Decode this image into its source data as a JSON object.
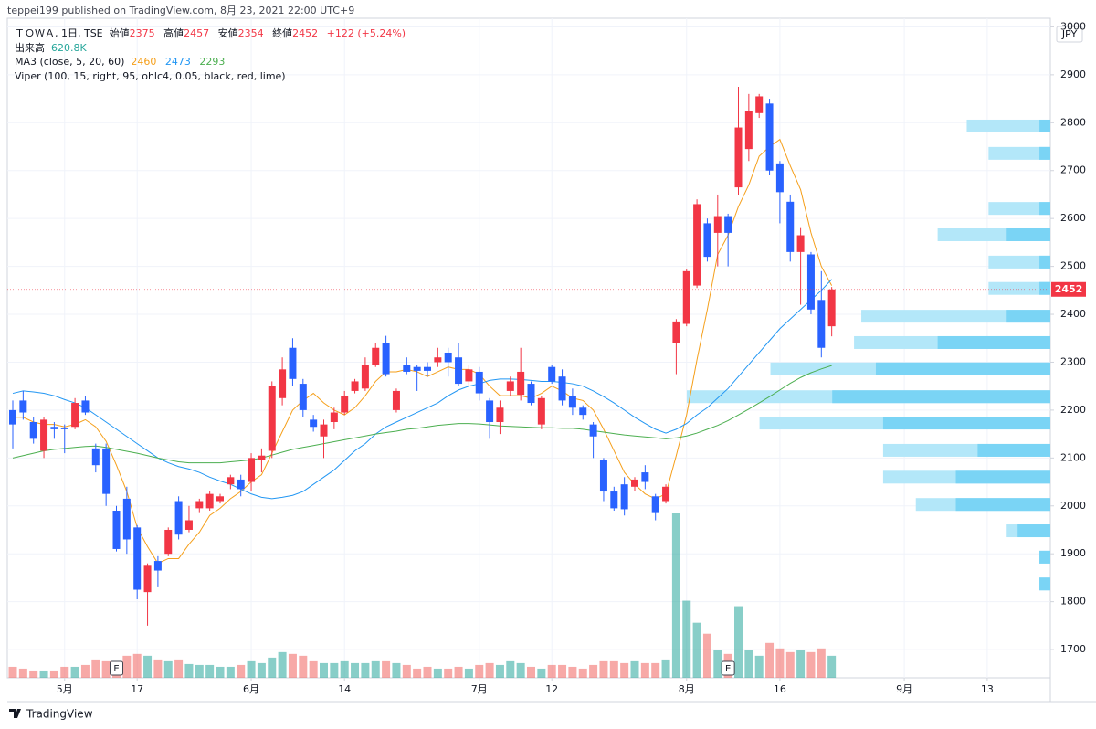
{
  "chart_data": {
    "type": "candlestick",
    "header": "teppei199 published on TradingView.com, 8月 23, 2021 22:00 UTC+9",
    "symbol": "ＴＯＷＡ, 1日, TSE",
    "legend": {
      "open_label": "始値",
      "high_label": "高値",
      "low_label": "安値",
      "close_label": "終値",
      "change": "+122 (+5.24%)",
      "volume_label": "出来高",
      "ma_label": "MA3 (close, 5, 20, 60)",
      "viper_label": "Viper (100, 15, right, 95, ohlc4, 0.05, black, red, lime)"
    },
    "currency": "JPY",
    "footer": "TradingView",
    "x": [
      "2021-04-23",
      "2021-04-26",
      "2021-04-27",
      "2021-04-28",
      "2021-04-30",
      "2021-05-06",
      "2021-05-07",
      "2021-05-10",
      "2021-05-11",
      "2021-05-12",
      "2021-05-13",
      "2021-05-14",
      "2021-05-17",
      "2021-05-18",
      "2021-05-19",
      "2021-05-20",
      "2021-05-21",
      "2021-05-24",
      "2021-05-25",
      "2021-05-26",
      "2021-05-27",
      "2021-05-28",
      "2021-05-31",
      "2021-06-01",
      "2021-06-02",
      "2021-06-03",
      "2021-06-04",
      "2021-06-07",
      "2021-06-08",
      "2021-06-09",
      "2021-06-10",
      "2021-06-11",
      "2021-06-14",
      "2021-06-15",
      "2021-06-16",
      "2021-06-17",
      "2021-06-18",
      "2021-06-21",
      "2021-06-22",
      "2021-06-23",
      "2021-06-24",
      "2021-06-25",
      "2021-06-28",
      "2021-06-29",
      "2021-06-30",
      "2021-07-01",
      "2021-07-02",
      "2021-07-05",
      "2021-07-06",
      "2021-07-07",
      "2021-07-08",
      "2021-07-09",
      "2021-07-12",
      "2021-07-13",
      "2021-07-14",
      "2021-07-15",
      "2021-07-16",
      "2021-07-19",
      "2021-07-20",
      "2021-07-21",
      "2021-07-26",
      "2021-07-27",
      "2021-07-28",
      "2021-07-29",
      "2021-07-30",
      "2021-08-02",
      "2021-08-03",
      "2021-08-04",
      "2021-08-05",
      "2021-08-06",
      "2021-08-10",
      "2021-08-11",
      "2021-08-12",
      "2021-08-13",
      "2021-08-16",
      "2021-08-17",
      "2021-08-18",
      "2021-08-19",
      "2021-08-20",
      "2021-08-23"
    ],
    "candles": {
      "up_color": "#f23645",
      "down_color": "#2962ff",
      "open": [
        2200,
        2220,
        2175,
        2115,
        2165,
        2163,
        2165,
        2220,
        2120,
        2120,
        1990,
        2015,
        1955,
        1820,
        1885,
        1900,
        2010,
        1950,
        1995,
        1995,
        2010,
        2045,
        2055,
        2050,
        2095,
        2115,
        2225,
        2330,
        2255,
        2180,
        2145,
        2175,
        2195,
        2240,
        2245,
        2295,
        2340,
        2200,
        2295,
        2290,
        2290,
        2300,
        2320,
        2310,
        2260,
        2280,
        2220,
        2175,
        2240,
        2232,
        2255,
        2170,
        2290,
        2270,
        2230,
        2205,
        2170,
        2095,
        2030,
        2045,
        2040,
        2070,
        2020,
        2010,
        2340,
        2380,
        2460,
        2590,
        2570,
        2605,
        2665,
        2745,
        2820,
        2840,
        2715,
        2635,
        2530,
        2525,
        2430,
        2375
      ],
      "high": [
        2220,
        2240,
        2185,
        2185,
        2175,
        2170,
        2225,
        2230,
        2130,
        2130,
        2000,
        2040,
        1960,
        1880,
        1895,
        1955,
        2020,
        2000,
        2015,
        2030,
        2025,
        2065,
        2065,
        2110,
        2120,
        2260,
        2310,
        2350,
        2265,
        2190,
        2180,
        2205,
        2240,
        2265,
        2310,
        2340,
        2355,
        2245,
        2310,
        2295,
        2300,
        2330,
        2330,
        2340,
        2295,
        2290,
        2225,
        2220,
        2270,
        2330,
        2260,
        2230,
        2295,
        2285,
        2245,
        2210,
        2175,
        2100,
        2040,
        2060,
        2060,
        2085,
        2025,
        2045,
        2390,
        2495,
        2640,
        2600,
        2650,
        2610,
        2875,
        2860,
        2860,
        2850,
        2720,
        2650,
        2580,
        2530,
        2490,
        2457
      ],
      "low": [
        2120,
        2180,
        2130,
        2100,
        2140,
        2110,
        2160,
        2190,
        2070,
        2000,
        1905,
        1900,
        1805,
        1750,
        1830,
        1895,
        1930,
        1945,
        1985,
        1990,
        2005,
        2035,
        2020,
        2030,
        2070,
        2100,
        2210,
        2250,
        2185,
        2155,
        2100,
        2160,
        2190,
        2235,
        2240,
        2290,
        2270,
        2195,
        2275,
        2240,
        2270,
        2290,
        2270,
        2250,
        2250,
        2220,
        2140,
        2150,
        2230,
        2220,
        2210,
        2160,
        2255,
        2210,
        2190,
        2180,
        2100,
        2010,
        1990,
        1980,
        2030,
        2035,
        1970,
        2005,
        2275,
        2375,
        2455,
        2510,
        2500,
        2500,
        2650,
        2720,
        2810,
        2690,
        2590,
        2510,
        2420,
        2400,
        2310,
        2354
      ],
      "close": [
        2170,
        2195,
        2140,
        2180,
        2160,
        2160,
        2215,
        2195,
        2085,
        2025,
        1910,
        1930,
        1825,
        1875,
        1865,
        1950,
        1940,
        1970,
        2010,
        2025,
        2020,
        2060,
        2035,
        2100,
        2105,
        2250,
        2285,
        2265,
        2200,
        2165,
        2170,
        2195,
        2230,
        2260,
        2295,
        2330,
        2275,
        2240,
        2280,
        2282,
        2282,
        2310,
        2300,
        2255,
        2285,
        2235,
        2175,
        2205,
        2260,
        2280,
        2215,
        2225,
        2260,
        2220,
        2205,
        2190,
        2145,
        2030,
        1995,
        1993,
        2055,
        2050,
        1985,
        2040,
        2385,
        2490,
        2630,
        2520,
        2605,
        2570,
        2790,
        2825,
        2855,
        2700,
        2655,
        2530,
        2565,
        2410,
        2330,
        2452
      ]
    },
    "volume": {
      "up_color": "rgba(38,166,154,0.55)",
      "down_color": "rgba(239,83,80,0.5)",
      "values": [
        310000,
        259000,
        207000,
        207000,
        207000,
        310000,
        310000,
        362000,
        517000,
        466000,
        466000,
        621000,
        673000,
        621000,
        517000,
        466000,
        517000,
        388000,
        362000,
        362000,
        310000,
        310000,
        362000,
        466000,
        414000,
        569000,
        724000,
        673000,
        621000,
        466000,
        414000,
        414000,
        466000,
        414000,
        414000,
        466000,
        466000,
        414000,
        362000,
        259000,
        310000,
        259000,
        259000,
        310000,
        259000,
        362000,
        414000,
        362000,
        466000,
        414000,
        310000,
        259000,
        362000,
        362000,
        310000,
        259000,
        362000,
        466000,
        466000,
        414000,
        466000,
        414000,
        414000,
        517000,
        4631000,
        2173000,
        1552000,
        1242000,
        776000,
        673000,
        2018000,
        776000,
        621000,
        983000,
        828000,
        724000,
        776000,
        724000,
        828000,
        620800
      ],
      "value_labels": [
        null,
        null,
        null,
        null,
        null,
        null,
        null,
        null,
        null,
        null,
        null,
        null,
        null,
        null,
        null,
        null,
        null,
        null,
        null,
        null,
        null,
        null,
        null,
        null,
        null,
        null,
        null,
        null,
        null,
        null,
        null,
        null,
        null,
        null,
        null,
        null,
        null,
        null,
        null,
        null,
        null,
        null,
        null,
        null,
        null,
        null,
        null,
        null,
        null,
        null,
        null,
        null,
        null,
        null,
        null,
        null,
        null,
        null,
        null,
        null,
        null,
        null,
        null,
        null,
        null,
        null,
        null,
        null,
        null,
        null,
        null,
        null,
        null,
        null,
        null,
        null,
        null,
        null,
        null,
        "620.8K"
      ]
    },
    "ma": {
      "lines": [
        {
          "color": "#f59f1a",
          "values": [
            2185,
            2185,
            2175,
            2170,
            2170,
            2165,
            2170,
            2180,
            2165,
            2135,
            2085,
            2030,
            1955,
            1915,
            1880,
            1890,
            1890,
            1920,
            1945,
            1980,
            1995,
            2015,
            2030,
            2050,
            2065,
            2110,
            2155,
            2200,
            2220,
            2235,
            2215,
            2200,
            2190,
            2205,
            2230,
            2260,
            2280,
            2280,
            2285,
            2280,
            2270,
            2280,
            2290,
            2285,
            2285,
            2275,
            2250,
            2230,
            2230,
            2230,
            2225,
            2235,
            2250,
            2240,
            2225,
            2220,
            2200,
            2160,
            2115,
            2070,
            2045,
            2025,
            2015,
            2025,
            2105,
            2190,
            2305,
            2410,
            2525,
            2565,
            2625,
            2670,
            2730,
            2750,
            2765,
            2710,
            2660,
            2570,
            2500,
            2460
          ]
        },
        {
          "color": "#2196f3",
          "values": [
            2235,
            2240,
            2238,
            2235,
            2230,
            2222,
            2215,
            2205,
            2190,
            2175,
            2160,
            2145,
            2130,
            2115,
            2100,
            2090,
            2082,
            2077,
            2070,
            2060,
            2052,
            2045,
            2035,
            2025,
            2018,
            2015,
            2018,
            2022,
            2030,
            2045,
            2060,
            2075,
            2095,
            2115,
            2130,
            2150,
            2165,
            2175,
            2185,
            2195,
            2205,
            2215,
            2230,
            2242,
            2250,
            2255,
            2262,
            2265,
            2265,
            2264,
            2262,
            2260,
            2260,
            2258,
            2255,
            2250,
            2240,
            2228,
            2215,
            2200,
            2185,
            2172,
            2160,
            2152,
            2160,
            2172,
            2190,
            2205,
            2225,
            2245,
            2270,
            2295,
            2320,
            2345,
            2370,
            2390,
            2410,
            2430,
            2450,
            2473
          ]
        },
        {
          "color": "#4caf50",
          "values": [
            2100,
            2105,
            2110,
            2115,
            2118,
            2120,
            2122,
            2124,
            2125,
            2122,
            2118,
            2114,
            2110,
            2105,
            2100,
            2096,
            2092,
            2090,
            2090,
            2090,
            2090,
            2092,
            2094,
            2096,
            2100,
            2106,
            2112,
            2118,
            2122,
            2126,
            2130,
            2134,
            2138,
            2142,
            2146,
            2150,
            2153,
            2156,
            2160,
            2162,
            2165,
            2168,
            2170,
            2172,
            2172,
            2171,
            2169,
            2167,
            2166,
            2165,
            2164,
            2163,
            2163,
            2162,
            2162,
            2160,
            2157,
            2154,
            2151,
            2148,
            2146,
            2144,
            2142,
            2140,
            2142,
            2146,
            2152,
            2160,
            2168,
            2178,
            2190,
            2202,
            2215,
            2228,
            2242,
            2256,
            2268,
            2278,
            2286,
            2293
          ]
        }
      ]
    },
    "volume_profile": {
      "light_color": "#b3e7f9",
      "dark_color": "#7ad4f5",
      "prices": [
        2793,
        2736,
        2621,
        2566,
        2509,
        2454,
        2396,
        2341,
        2286,
        2228,
        2173,
        2116,
        2060,
        2003,
        1948,
        1893,
        1837
      ],
      "total": [
        23,
        17,
        17,
        31,
        17,
        17,
        52,
        54,
        77,
        100,
        80,
        46,
        46,
        37,
        12,
        3,
        3
      ],
      "dark": [
        3,
        3,
        3,
        12,
        3,
        3,
        12,
        31,
        48,
        60,
        46,
        20,
        26,
        26,
        9,
        3,
        3
      ]
    },
    "events": [
      {
        "x": "2021-05-13",
        "label": "E"
      },
      {
        "x": "2021-08-06",
        "label": "E"
      }
    ],
    "ylim": [
      1641,
      3018
    ],
    "yticks": [
      1700,
      1800,
      1900,
      2000,
      2100,
      2200,
      2300,
      2400,
      2500,
      2600,
      2700,
      2800,
      2900,
      3000
    ],
    "xticks": [
      {
        "value": "2021-05-06",
        "label": "5月"
      },
      {
        "value": "2021-05-17",
        "label": "17"
      },
      {
        "value": "2021-06-01",
        "label": "6月"
      },
      {
        "value": "2021-06-14",
        "label": "14"
      },
      {
        "value": "2021-07-01",
        "label": "7月"
      },
      {
        "value": "2021-07-12",
        "label": "12"
      },
      {
        "value": "2021-08-02",
        "label": "8月"
      },
      {
        "value": "2021-08-16",
        "label": "16"
      },
      {
        "value": "2021-09-01",
        "label": "9月"
      },
      {
        "value": "2021-09-13",
        "label": "13"
      }
    ],
    "grid": true,
    "price_line": true
  }
}
